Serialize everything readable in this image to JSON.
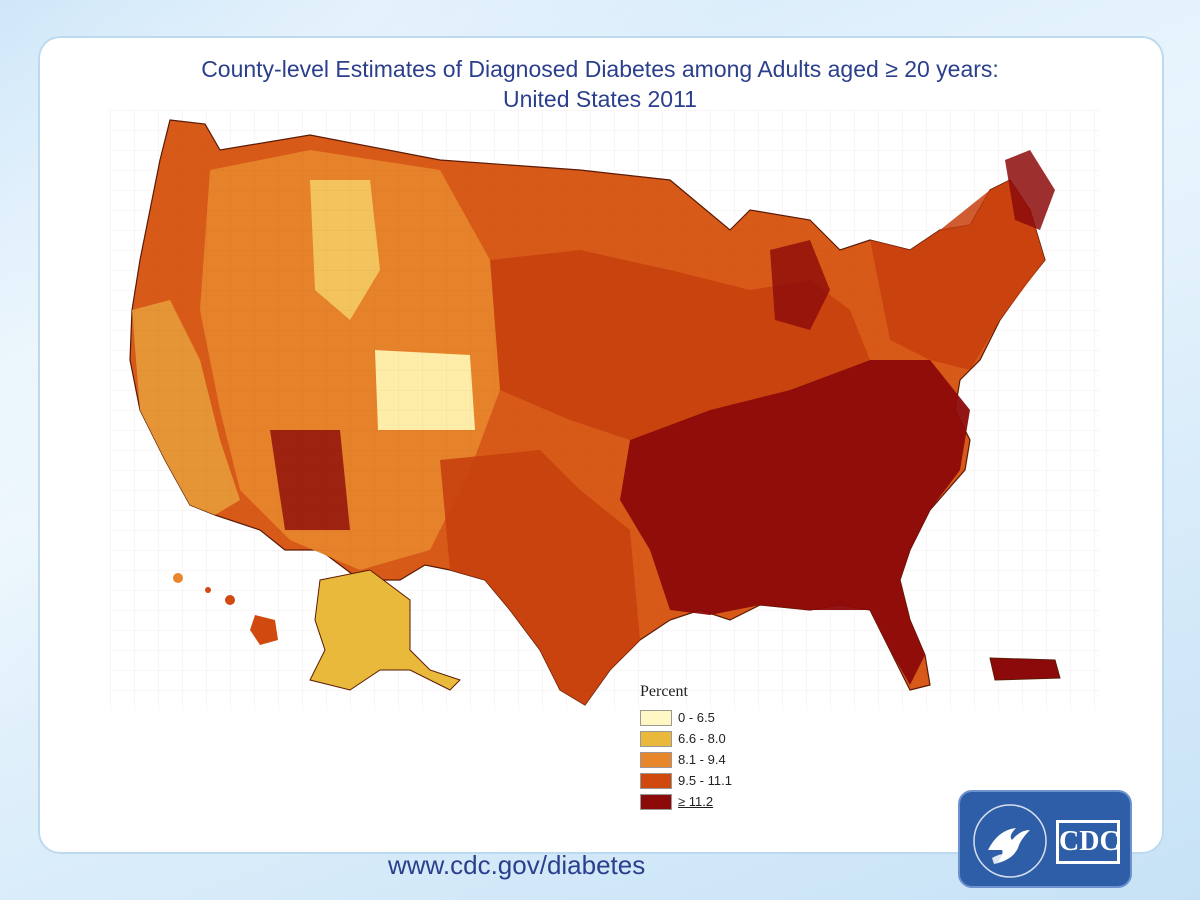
{
  "title": {
    "line1": "County-level Estimates of Diagnosed Diabetes among Adults aged ≥ 20 years:",
    "line2": "United States 2011"
  },
  "legend": {
    "title": "Percent",
    "items": [
      {
        "label": "0 - 6.5",
        "color": "#fff8c4"
      },
      {
        "label": "6.6 - 8.0",
        "color": "#e8b93a"
      },
      {
        "label": "8.1 - 9.4",
        "color": "#e8862c"
      },
      {
        "label": "9.5 - 11.1",
        "color": "#d04a10"
      },
      {
        "label": "≥ 11.2",
        "color": "#8c0a0a"
      }
    ]
  },
  "footer": {
    "url": "www.cdc.gov/diabetes"
  },
  "logo": {
    "text": "CDC",
    "seal_icon": "hhs-eagle-seal-icon"
  },
  "colors": {
    "title": "#2b3f8c",
    "background": "#d7ecfa",
    "logo_blue": "#2f5ea8"
  }
}
